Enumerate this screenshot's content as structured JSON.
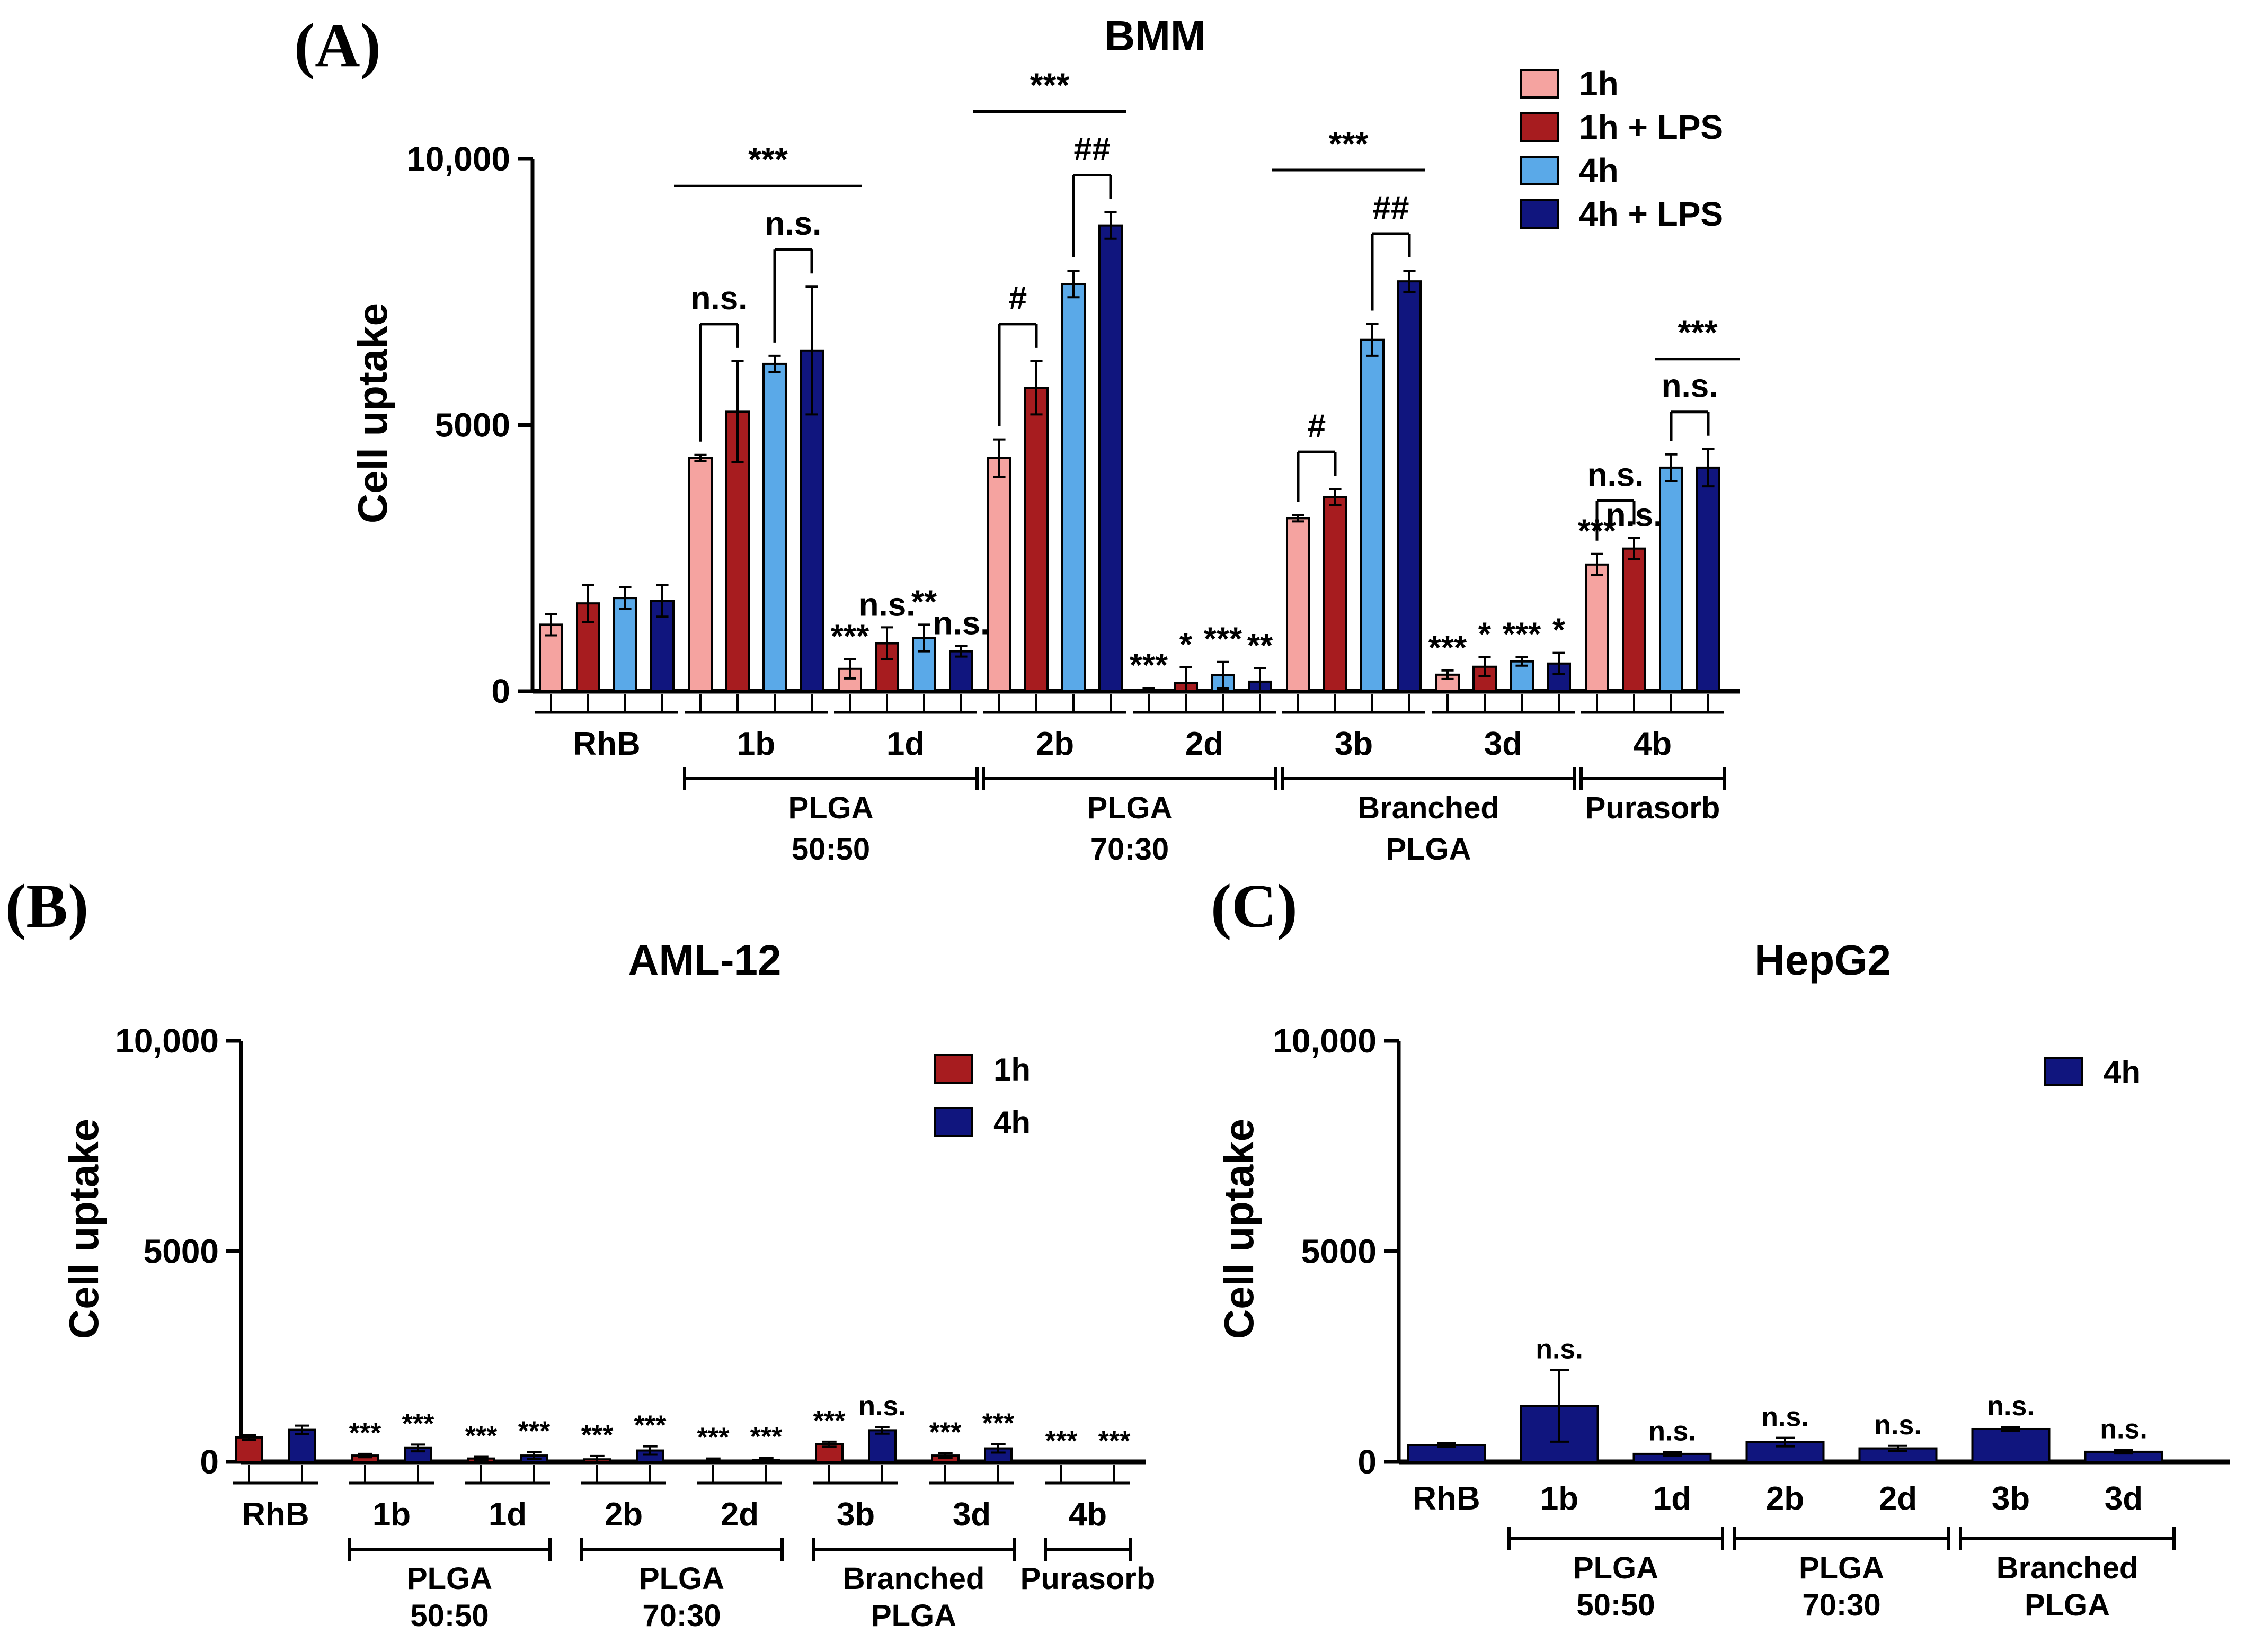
{
  "colors": {
    "1h": "#f5a3a0",
    "1h + LPS": "#a71c1f",
    "4h": "#5aa9e8",
    "4h + LPS": "#10157e",
    "aml_1h": "#a71c1f",
    "aml_4h": "#10157e",
    "hep_4h": "#10157e"
  },
  "chart_data": [
    {
      "id": "A",
      "panel_label": "(A)",
      "type": "bar",
      "title": "BMM",
      "ylabel": "Cell uptake",
      "ylim": [
        0,
        10000
      ],
      "yticks": [
        "0",
        "5000",
        "10,000"
      ],
      "ytick_values": [
        0,
        5000,
        10000
      ],
      "categories": [
        "RhB",
        "1b",
        "1d",
        "2b",
        "2d",
        "3b",
        "3d",
        "4b"
      ],
      "series": [
        {
          "name": "1h",
          "values": [
            1250,
            4380,
            420,
            4380,
            30,
            3250,
            310,
            2380
          ],
          "errors": [
            200,
            60,
            180,
            350,
            30,
            60,
            80,
            200
          ]
        },
        {
          "name": "1h + LPS",
          "values": [
            1650,
            5250,
            900,
            5700,
            150,
            3650,
            460,
            2680
          ],
          "errors": [
            350,
            950,
            300,
            500,
            300,
            150,
            180,
            200
          ]
        },
        {
          "name": "4h",
          "values": [
            1750,
            6150,
            1000,
            7650,
            300,
            6600,
            560,
            4200
          ],
          "errors": [
            200,
            150,
            250,
            250,
            250,
            300,
            80,
            250
          ]
        },
        {
          "name": "4h + LPS",
          "values": [
            1700,
            6400,
            750,
            8750,
            180,
            7700,
            520,
            4200
          ],
          "errors": [
            300,
            1200,
            100,
            250,
            250,
            200,
            200,
            350
          ]
        }
      ],
      "point_labels": [
        [
          null,
          null,
          null,
          null
        ],
        [
          null,
          null,
          null,
          null
        ],
        [
          "***",
          "n.s.",
          "**",
          "n.s."
        ],
        [
          null,
          null,
          null,
          null
        ],
        [
          "***",
          "*",
          "***",
          "**"
        ],
        [
          null,
          null,
          null,
          null
        ],
        [
          "***",
          "*",
          "***",
          "*"
        ],
        [
          "***",
          "n.s.",
          null,
          null
        ]
      ],
      "pair_brackets": [
        {
          "group": 1,
          "from": 0,
          "to": 1,
          "label": "n.s."
        },
        {
          "group": 1,
          "from": 2,
          "to": 3,
          "label": "n.s."
        },
        {
          "group": 3,
          "from": 0,
          "to": 1,
          "label": "#"
        },
        {
          "group": 3,
          "from": 2,
          "to": 3,
          "label": "##"
        },
        {
          "group": 5,
          "from": 0,
          "to": 1,
          "label": "#"
        },
        {
          "group": 5,
          "from": 2,
          "to": 3,
          "label": "##"
        },
        {
          "group": 7,
          "from": 0,
          "to": 1,
          "label": "n.s."
        },
        {
          "group": 7,
          "from": 2,
          "to": 3,
          "label": "n.s."
        }
      ],
      "group_lines": [
        {
          "from_group": 1,
          "to_group": 1,
          "label": "***"
        },
        {
          "from_group": 3,
          "to_group": 3,
          "label": "***"
        },
        {
          "from_group": 5,
          "to_group": 5,
          "label": "***"
        },
        {
          "from_group": 7,
          "to_group": 7,
          "label": "***",
          "sub": "right"
        }
      ],
      "sections": [
        {
          "from": 1,
          "to": 2,
          "lines": [
            "PLGA",
            "50:50"
          ]
        },
        {
          "from": 3,
          "to": 4,
          "lines": [
            "PLGA",
            "70:30"
          ]
        },
        {
          "from": 5,
          "to": 6,
          "lines": [
            "Branched",
            "PLGA"
          ]
        },
        {
          "from": 7,
          "to": 7,
          "lines": [
            "Purasorb"
          ]
        }
      ],
      "legend": [
        "1h",
        "1h + LPS",
        "4h",
        "4h + LPS"
      ]
    },
    {
      "id": "B",
      "panel_label": "(B)",
      "type": "bar",
      "title": "AML-12",
      "ylabel": "Cell uptake",
      "ylim": [
        0,
        10000
      ],
      "yticks": [
        "0",
        "5000",
        "10,000"
      ],
      "ytick_values": [
        0,
        5000,
        10000
      ],
      "categories": [
        "RhB",
        "1b",
        "1d",
        "2b",
        "2d",
        "3b",
        "3d",
        "4b"
      ],
      "series": [
        {
          "name": "1h",
          "values": [
            580,
            150,
            80,
            60,
            30,
            420,
            150,
            0
          ],
          "errors": [
            60,
            40,
            40,
            80,
            50,
            60,
            60,
            0
          ]
        },
        {
          "name": "4h",
          "values": [
            760,
            330,
            150,
            270,
            50,
            750,
            320,
            0
          ],
          "errors": [
            100,
            80,
            80,
            100,
            50,
            80,
            100,
            0
          ]
        }
      ],
      "point_labels": [
        [
          null,
          null
        ],
        [
          "***",
          "***"
        ],
        [
          "***",
          "***"
        ],
        [
          "***",
          "***"
        ],
        [
          "***",
          "***"
        ],
        [
          "***",
          "n.s."
        ],
        [
          "***",
          "***"
        ],
        [
          "***",
          "***"
        ]
      ],
      "sections": [
        {
          "from": 1,
          "to": 2,
          "lines": [
            "PLGA",
            "50:50"
          ]
        },
        {
          "from": 3,
          "to": 4,
          "lines": [
            "PLGA",
            "70:30"
          ]
        },
        {
          "from": 5,
          "to": 6,
          "lines": [
            "Branched",
            "PLGA"
          ]
        },
        {
          "from": 7,
          "to": 7,
          "lines": [
            "Purasorb"
          ]
        }
      ],
      "legend": [
        "1h",
        "4h"
      ]
    },
    {
      "id": "C",
      "panel_label": "(C)",
      "type": "bar",
      "title": "HepG2",
      "ylabel": "Cell uptake",
      "ylim": [
        0,
        10000
      ],
      "yticks": [
        "0",
        "5000",
        "10,000"
      ],
      "ytick_values": [
        0,
        5000,
        10000
      ],
      "categories": [
        "RhB",
        "1b",
        "1d",
        "2b",
        "2d",
        "3b",
        "3d"
      ],
      "series": [
        {
          "name": "4h",
          "values": [
            400,
            1330,
            190,
            470,
            320,
            780,
            240
          ],
          "errors": [
            40,
            850,
            40,
            100,
            60,
            50,
            40
          ]
        }
      ],
      "point_labels": [
        [
          null
        ],
        [
          "n.s."
        ],
        [
          "n.s."
        ],
        [
          "n.s."
        ],
        [
          "n.s."
        ],
        [
          "n.s."
        ],
        [
          "n.s."
        ]
      ],
      "sections": [
        {
          "from": 1,
          "to": 2,
          "lines": [
            "PLGA",
            "50:50"
          ]
        },
        {
          "from": 3,
          "to": 4,
          "lines": [
            "PLGA",
            "70:30"
          ]
        },
        {
          "from": 5,
          "to": 6,
          "lines": [
            "Branched",
            "PLGA"
          ]
        }
      ],
      "legend": [
        "4h"
      ]
    }
  ]
}
